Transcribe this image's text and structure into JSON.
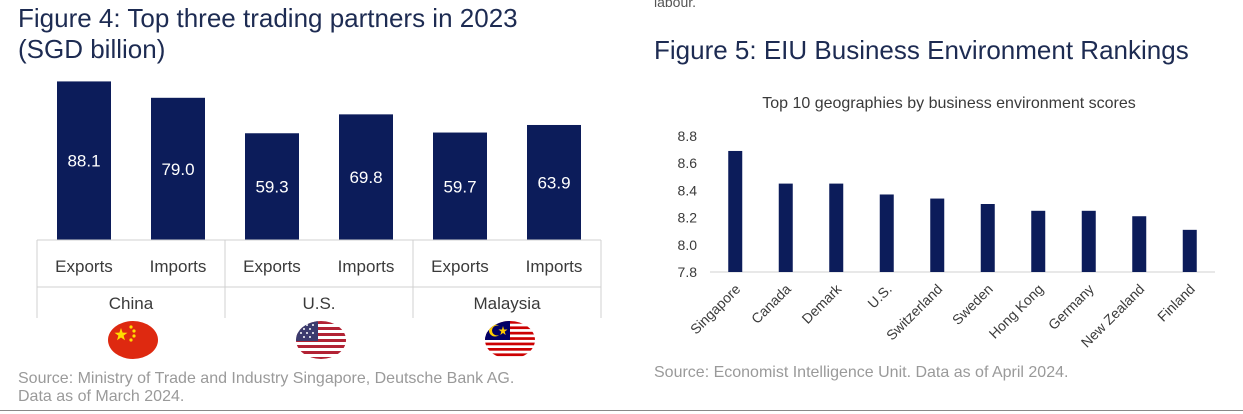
{
  "colors": {
    "bar": "#0c1c5a",
    "title": "#1d2b52",
    "source": "#9a9a9a",
    "axis_text": "#3a3a3a",
    "grid": "#d0d0d0"
  },
  "top_cut_text": "labour.",
  "figure4": {
    "title_line1": "Figure 4: Top three trading partners in 2023",
    "title_line2": "(SGD billion)",
    "source_line1": "Source: Ministry of Trade and Industry Singapore, Deutsche Bank AG.",
    "source_line2": "Data as of March 2024.",
    "flags": [
      {
        "country": "China",
        "icon": "china-flag-icon"
      },
      {
        "country": "U.S.",
        "icon": "us-flag-icon"
      },
      {
        "country": "Malaysia",
        "icon": "malaysia-flag-icon"
      }
    ]
  },
  "figure5": {
    "title": "Figure 5: EIU Business Environment Rankings",
    "source": "Source: Economist Intelligence Unit. Data as of April 2024."
  },
  "chart_data": [
    {
      "type": "bar",
      "title": "",
      "groups": [
        "China",
        "U.S.",
        "Malaysia"
      ],
      "categories": [
        "Exports",
        "Imports",
        "Exports",
        "Imports",
        "Exports",
        "Imports"
      ],
      "values": [
        88.1,
        79.0,
        59.3,
        69.8,
        59.7,
        63.9
      ],
      "value_labels": [
        "88.1",
        "79.0",
        "59.3",
        "69.8",
        "59.7",
        "63.9"
      ],
      "ylim": [
        0,
        100
      ],
      "grid": false,
      "legend": "none"
    },
    {
      "type": "bar",
      "title": "Top 10 geographies by business environment scores",
      "categories": [
        "Singapore",
        "Canada",
        "Demark",
        "U.S.",
        "Switzerland",
        "Sweden",
        "Hong Kong",
        "Germany",
        "New Zealand",
        "Finland"
      ],
      "values": [
        8.69,
        8.45,
        8.45,
        8.37,
        8.34,
        8.3,
        8.25,
        8.25,
        8.21,
        8.11
      ],
      "yticks": [
        "8.8",
        "8.6",
        "8.4",
        "8.2",
        "8.0",
        "7.8"
      ],
      "ylim": [
        7.8,
        8.8
      ],
      "grid": false,
      "legend": "none"
    }
  ]
}
